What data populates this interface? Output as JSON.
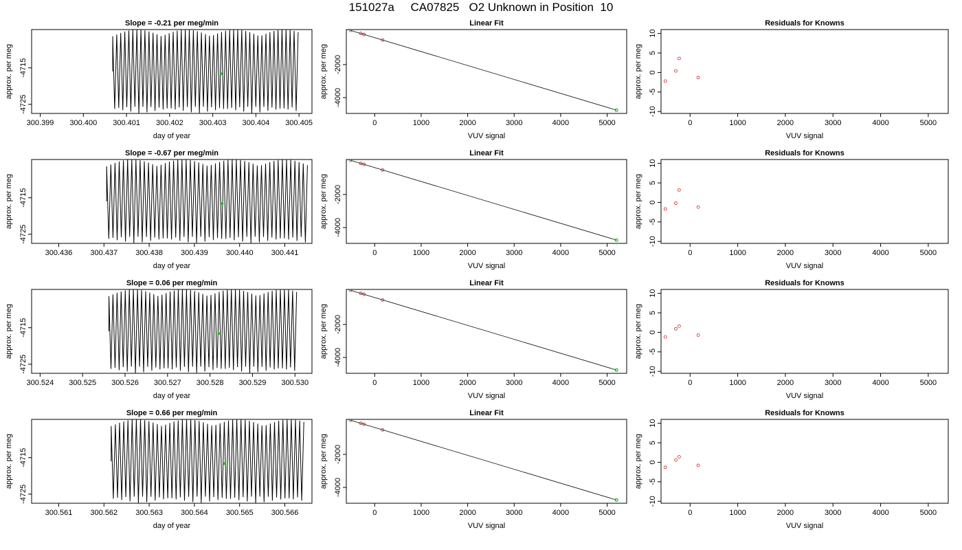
{
  "figure": {
    "title": "151027a     CA07825   O2 Unknown in Position  10"
  },
  "colors": {
    "trace": "#000000",
    "highlight": "#00c800",
    "residual": "#cc2222",
    "axis": "#000000"
  },
  "chart_data": [
    {
      "type": "line",
      "panel_title": "Slope =  -0.21  per meg/min",
      "xlabel": "day of year",
      "ylabel": "approx. per meg",
      "xlim": [
        300.3988,
        300.4053
      ],
      "ylim": [
        -4727.5,
        -4704.5
      ],
      "xticks": [
        "300.399",
        "300.400",
        "300.401",
        "300.402",
        "300.403",
        "300.404",
        "300.405"
      ],
      "yticks": [
        "-4715",
        "-4725"
      ],
      "trace_x_range": [
        300.40068,
        300.40498
      ],
      "trace_y_range": [
        -4727.5,
        -4704.5
      ],
      "trace_cycles": 46,
      "highlight_point": {
        "x": 300.4032,
        "y": -4716.6
      }
    },
    {
      "type": "scatter",
      "panel_title": "Linear Fit",
      "xlabel": "VUV signal",
      "ylabel": "approx. per meg",
      "xlim": [
        -610,
        5420
      ],
      "ylim": [
        -4960,
        120
      ],
      "xticks": [
        "0",
        "1000",
        "2000",
        "3000",
        "4000",
        "5000"
      ],
      "yticks": [
        "-2000",
        "-4000"
      ],
      "fit_line": [
        [
          -520,
          70
        ],
        [
          5200,
          -4760
        ]
      ],
      "points": [
        {
          "x": -520,
          "y": 70
        },
        {
          "x": -300,
          "y": -115
        },
        {
          "x": -230,
          "y": -175
        },
        {
          "x": 170,
          "y": -515
        }
      ],
      "unknown_point": {
        "x": 5200,
        "y": -4760
      }
    },
    {
      "type": "scatter",
      "panel_title": "Residuals for Knowns",
      "xlabel": "VUV signal",
      "ylabel": "",
      "xlim": [
        -610,
        5420
      ],
      "ylim": [
        -10.5,
        11
      ],
      "xticks": [
        "0",
        "1000",
        "2000",
        "3000",
        "4000",
        "5000"
      ],
      "yticks": [
        "10",
        "5",
        "0",
        "-5",
        "-10"
      ],
      "points": [
        {
          "x": -520,
          "y": -2.2
        },
        {
          "x": -300,
          "y": 0.4
        },
        {
          "x": -230,
          "y": 3.6
        },
        {
          "x": 170,
          "y": -1.3
        }
      ]
    },
    {
      "type": "line",
      "panel_title": "Slope =  -0.67  per meg/min",
      "xlabel": "day of year",
      "ylabel": "approx. per meg",
      "xlim": [
        300.4354,
        300.4416
      ],
      "ylim": [
        -4727.5,
        -4704.5
      ],
      "xticks": [
        "300.436",
        "300.437",
        "300.438",
        "300.439",
        "300.440",
        "300.441"
      ],
      "yticks": [
        "-4715",
        "-4725"
      ],
      "trace_x_range": [
        300.43706,
        300.4415
      ],
      "trace_y_range": [
        -4727.5,
        -4704.5
      ],
      "trace_cycles": 48,
      "highlight_point": {
        "x": 300.43962,
        "y": -4716.6
      }
    },
    {
      "type": "scatter",
      "panel_title": "Linear Fit",
      "xlabel": "VUV signal",
      "ylabel": "approx. per meg",
      "xlim": [
        -610,
        5420
      ],
      "ylim": [
        -4960,
        120
      ],
      "xticks": [
        "0",
        "1000",
        "2000",
        "3000",
        "4000",
        "5000"
      ],
      "yticks": [
        "-2000",
        "-4000"
      ],
      "fit_line": [
        [
          -520,
          70
        ],
        [
          5200,
          -4760
        ]
      ],
      "points": [
        {
          "x": -520,
          "y": 70
        },
        {
          "x": -300,
          "y": -115
        },
        {
          "x": -230,
          "y": -175
        },
        {
          "x": 170,
          "y": -515
        }
      ],
      "unknown_point": {
        "x": 5200,
        "y": -4760
      }
    },
    {
      "type": "scatter",
      "panel_title": "Residuals for Knowns",
      "xlabel": "VUV signal",
      "ylabel": "",
      "xlim": [
        -610,
        5420
      ],
      "ylim": [
        -10.5,
        11
      ],
      "xticks": [
        "0",
        "1000",
        "2000",
        "3000",
        "4000",
        "5000"
      ],
      "yticks": [
        "10",
        "5",
        "0",
        "-5",
        "-10"
      ],
      "points": [
        {
          "x": -520,
          "y": -1.7
        },
        {
          "x": -300,
          "y": -0.2
        },
        {
          "x": -230,
          "y": 3.2
        },
        {
          "x": 170,
          "y": -1.2
        }
      ]
    },
    {
      "type": "line",
      "panel_title": "Slope =  0.06  per meg/min",
      "xlabel": "day of year",
      "ylabel": "approx. per meg",
      "xlim": [
        300.5238,
        300.5304
      ],
      "ylim": [
        -4727.5,
        -4704.5
      ],
      "xticks": [
        "300.524",
        "300.525",
        "300.526",
        "300.527",
        "300.528",
        "300.529",
        "300.530"
      ],
      "yticks": [
        "-4715",
        "-4725"
      ],
      "trace_x_range": [
        300.52562,
        300.53004
      ],
      "trace_y_range": [
        -4727.5,
        -4704.5
      ],
      "trace_cycles": 46,
      "highlight_point": {
        "x": 300.5282,
        "y": -4716.6
      }
    },
    {
      "type": "scatter",
      "panel_title": "Linear Fit",
      "xlabel": "VUV signal",
      "ylabel": "approx. per meg",
      "xlim": [
        -610,
        5420
      ],
      "ylim": [
        -4960,
        120
      ],
      "xticks": [
        "0",
        "1000",
        "2000",
        "3000",
        "4000",
        "5000"
      ],
      "yticks": [
        "-2000",
        "-4000"
      ],
      "fit_line": [
        [
          -520,
          70
        ],
        [
          5200,
          -4760
        ]
      ],
      "points": [
        {
          "x": -520,
          "y": 70
        },
        {
          "x": -300,
          "y": -115
        },
        {
          "x": -230,
          "y": -175
        },
        {
          "x": 170,
          "y": -515
        }
      ],
      "unknown_point": {
        "x": 5200,
        "y": -4760
      }
    },
    {
      "type": "scatter",
      "panel_title": "Residuals for Knowns",
      "xlabel": "VUV signal",
      "ylabel": "",
      "xlim": [
        -610,
        5420
      ],
      "ylim": [
        -10.5,
        11
      ],
      "xticks": [
        "0",
        "1000",
        "2000",
        "3000",
        "4000",
        "5000"
      ],
      "yticks": [
        "10",
        "5",
        "0",
        "-5",
        "-10"
      ],
      "points": [
        {
          "x": -520,
          "y": -1.2
        },
        {
          "x": -300,
          "y": 0.9
        },
        {
          "x": -230,
          "y": 1.6
        },
        {
          "x": 170,
          "y": -0.7
        }
      ]
    },
    {
      "type": "line",
      "panel_title": "Slope =  0.66  per meg/min",
      "xlabel": "day of year",
      "ylabel": "approx. per meg",
      "xlim": [
        300.5604,
        300.5666
      ],
      "ylim": [
        -4727.5,
        -4704.5
      ],
      "xticks": [
        "300.561",
        "300.562",
        "300.563",
        "300.564",
        "300.565",
        "300.566"
      ],
      "yticks": [
        "-4715",
        "-4725"
      ],
      "trace_x_range": [
        300.56216,
        300.56642
      ],
      "trace_y_range": [
        -4727.5,
        -4704.5
      ],
      "trace_cycles": 46,
      "highlight_point": {
        "x": 300.56466,
        "y": -4716.6
      }
    },
    {
      "type": "scatter",
      "panel_title": "Linear Fit",
      "xlabel": "VUV signal",
      "ylabel": "approx. per meg",
      "xlim": [
        -610,
        5420
      ],
      "ylim": [
        -4960,
        120
      ],
      "xticks": [
        "0",
        "1000",
        "2000",
        "3000",
        "4000",
        "5000"
      ],
      "yticks": [
        "-2000",
        "-4000"
      ],
      "fit_line": [
        [
          -520,
          70
        ],
        [
          5200,
          -4760
        ]
      ],
      "points": [
        {
          "x": -520,
          "y": 70
        },
        {
          "x": -300,
          "y": -115
        },
        {
          "x": -230,
          "y": -175
        },
        {
          "x": 170,
          "y": -515
        }
      ],
      "unknown_point": {
        "x": 5200,
        "y": -4760
      }
    },
    {
      "type": "scatter",
      "panel_title": "Residuals for Knowns",
      "xlabel": "VUV signal",
      "ylabel": "",
      "xlim": [
        -610,
        5420
      ],
      "ylim": [
        -10.5,
        11
      ],
      "xticks": [
        "0",
        "1000",
        "2000",
        "3000",
        "4000",
        "5000"
      ],
      "yticks": [
        "10",
        "5",
        "0",
        "-5",
        "-10"
      ],
      "points": [
        {
          "x": -520,
          "y": -1.3
        },
        {
          "x": -300,
          "y": 0.6
        },
        {
          "x": -230,
          "y": 1.4
        },
        {
          "x": 170,
          "y": -0.8
        }
      ]
    }
  ]
}
